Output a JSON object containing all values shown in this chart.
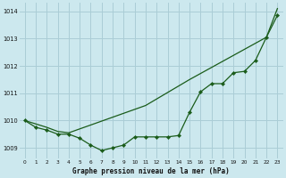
{
  "title": "Graphe pression niveau de la mer (hPa)",
  "bg_color": "#cce8ee",
  "grid_color": "#aacdd6",
  "line_color": "#1a5c1a",
  "x_values": [
    0,
    1,
    2,
    3,
    4,
    5,
    6,
    7,
    8,
    9,
    10,
    11,
    12,
    13,
    14,
    15,
    16,
    17,
    18,
    19,
    20,
    21,
    22,
    23
  ],
  "x_labels": [
    "0",
    "1",
    "2",
    "3",
    "4",
    "5",
    "6",
    "7",
    "8",
    "9",
    "10",
    "11",
    "12",
    "13",
    "14",
    "15",
    "16",
    "17",
    "18",
    "19",
    "20",
    "21",
    "22",
    "23"
  ],
  "line1_y": [
    1010.0,
    1009.75,
    1009.65,
    1009.5,
    1009.5,
    1009.35,
    1009.1,
    1008.9,
    1009.0,
    1009.1,
    1009.4,
    1009.4,
    1009.4,
    1009.4,
    1009.45,
    1010.3,
    1011.05,
    1011.35,
    1011.35,
    1011.75,
    1011.8,
    1012.2,
    1013.05,
    1013.85
  ],
  "line2_x": [
    0,
    2,
    3,
    4,
    11,
    15,
    22,
    23
  ],
  "line2_y": [
    1010.0,
    1009.75,
    1009.6,
    1009.55,
    1010.55,
    1011.5,
    1013.05,
    1014.1
  ],
  "ylim": [
    1008.6,
    1014.3
  ],
  "yticks": [
    1009,
    1010,
    1011,
    1012,
    1013,
    1014
  ],
  "xlim": [
    -0.5,
    23.5
  ],
  "figsize": [
    3.2,
    2.0
  ],
  "dpi": 100
}
